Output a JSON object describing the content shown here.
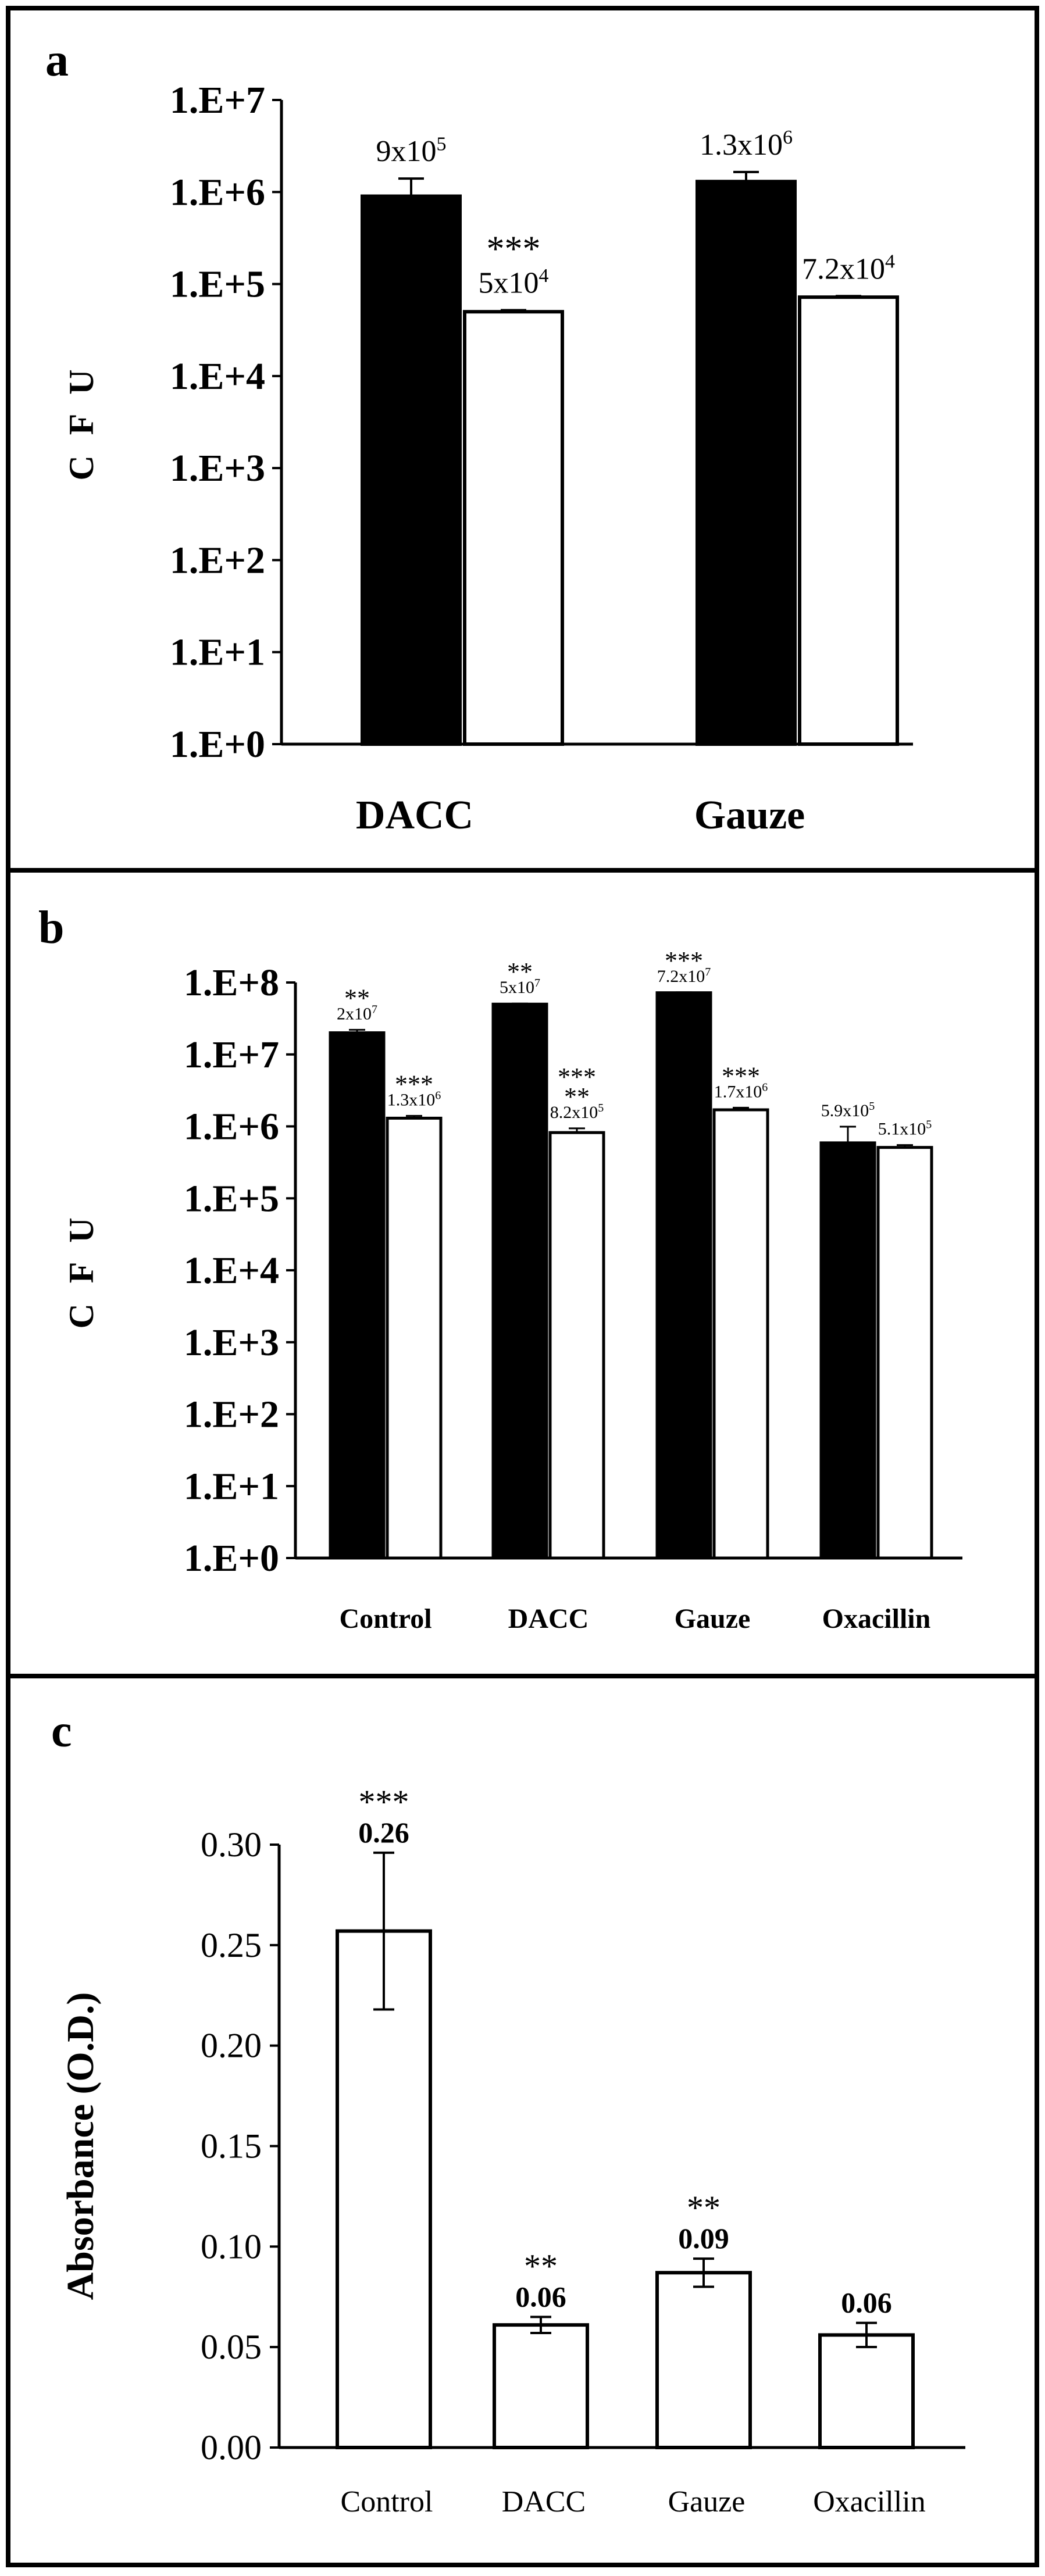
{
  "figure": {
    "colors": {
      "filled": "#000000",
      "open": "#ffffff",
      "stroke": "#000000",
      "frame": "#000000"
    }
  },
  "chart_data": [
    {
      "panel": "a",
      "type": "bar",
      "scale": "log10",
      "ylabel": "C F U",
      "ylim": [
        1,
        10000000
      ],
      "yticks": [
        "1.E+0",
        "1.E+1",
        "1.E+2",
        "1.E+3",
        "1.E+4",
        "1.E+5",
        "1.E+6",
        "1.E+7"
      ],
      "categories": [
        "DACC",
        "Gauze"
      ],
      "series": [
        {
          "name": "filled",
          "values": [
            900000,
            1300000
          ],
          "errors": [
            500000,
            350000
          ],
          "labels": [
            {
              "base": "9x10",
              "exp": "5"
            },
            {
              "base": "1.3x10",
              "exp": "6"
            }
          ],
          "sig": [
            "",
            ""
          ]
        },
        {
          "name": "open",
          "values": [
            50000,
            72000
          ],
          "errors": [
            2000,
            2000
          ],
          "labels": [
            {
              "base": "5x10",
              "exp": "4"
            },
            {
              "base": "7.2x10",
              "exp": "4"
            }
          ],
          "sig": [
            "***",
            ""
          ]
        }
      ]
    },
    {
      "panel": "b",
      "type": "bar",
      "scale": "log10",
      "ylabel": "C F U",
      "ylim": [
        1,
        100000000
      ],
      "yticks": [
        "1.E+0",
        "1.E+1",
        "1.E+2",
        "1.E+3",
        "1.E+4",
        "1.E+5",
        "1.E+6",
        "1.E+7",
        "1.E+8"
      ],
      "categories": [
        "Control",
        "DACC",
        "Gauze",
        "Oxacillin"
      ],
      "series": [
        {
          "name": "filled",
          "values": [
            20000000,
            50000000,
            72000000,
            590000
          ],
          "errors": [
            2000000,
            1000000,
            1000000,
            400000
          ],
          "labels": [
            {
              "base": "2x10",
              "exp": "7"
            },
            {
              "base": "5x10",
              "exp": "7"
            },
            {
              "base": "7.2x10",
              "exp": "7"
            },
            {
              "base": "5.9x10",
              "exp": "5"
            }
          ],
          "sig": [
            "**",
            "**",
            "***",
            ""
          ]
        },
        {
          "name": "open",
          "values": [
            1300000,
            820000,
            1700000,
            510000
          ],
          "errors": [
            100000,
            120000,
            120000,
            40000
          ],
          "labels": [
            {
              "base": "1.3x10",
              "exp": "6"
            },
            {
              "base": "8.2x10",
              "exp": "5"
            },
            {
              "base": "1.7x10",
              "exp": "6"
            },
            {
              "base": "5.1x10",
              "exp": "5"
            }
          ],
          "sig": [
            "***",
            "***\n**",
            "***",
            ""
          ]
        }
      ]
    },
    {
      "panel": "c",
      "type": "bar",
      "scale": "linear",
      "ylabel": "Absorbance (O.D.)",
      "ylim": [
        0,
        0.3
      ],
      "yticks": [
        "0.00",
        "0.05",
        "0.10",
        "0.15",
        "0.20",
        "0.25",
        "0.30"
      ],
      "categories": [
        "Control",
        "DACC",
        "Gauze",
        "Oxacillin"
      ],
      "series": [
        {
          "name": "open",
          "values": [
            0.257,
            0.061,
            0.087,
            0.056
          ],
          "errors": [
            0.039,
            0.004,
            0.007,
            0.006
          ],
          "labels": [
            "0.26",
            "0.06",
            "0.09",
            "0.06"
          ],
          "sig": [
            "***",
            "**",
            "**",
            ""
          ]
        }
      ]
    }
  ]
}
